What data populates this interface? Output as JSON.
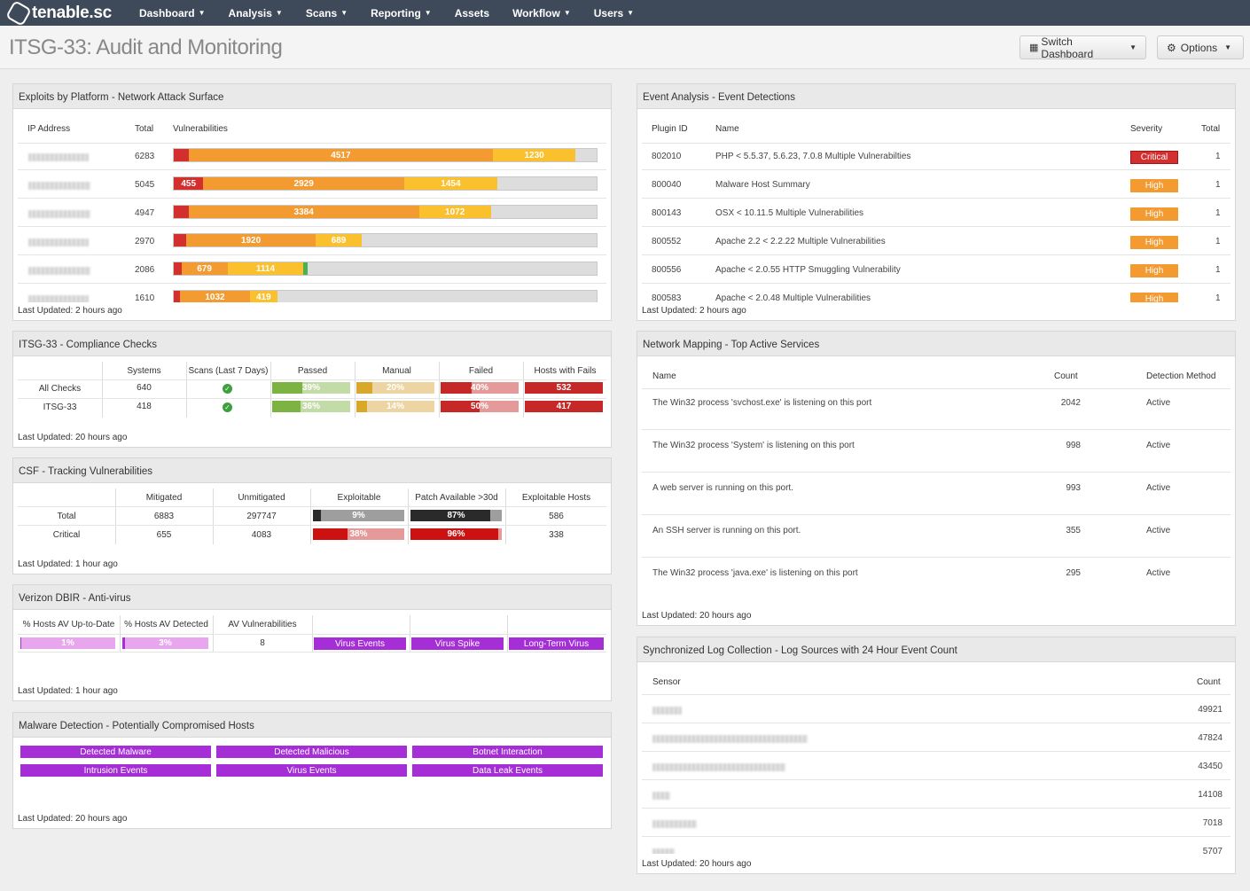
{
  "nav": {
    "logo": "tenable.sc",
    "items": [
      {
        "label": "Dashboard",
        "dropdown": true
      },
      {
        "label": "Analysis",
        "dropdown": true
      },
      {
        "label": "Scans",
        "dropdown": true
      },
      {
        "label": "Reporting",
        "dropdown": true
      },
      {
        "label": "Assets",
        "dropdown": false
      },
      {
        "label": "Workflow",
        "dropdown": true
      },
      {
        "label": "Users",
        "dropdown": true
      }
    ]
  },
  "header": {
    "title": "ITSG-33: Audit and Monitoring",
    "switch_dashboard": "Switch Dashboard",
    "options": "Options"
  },
  "colors": {
    "critical": "#d32f2f",
    "high": "#f39a30",
    "medium": "#fbc02d",
    "low": "#4caf50",
    "pass": "#7cb342",
    "manual": "#d9a82a",
    "fail": "#c62828",
    "purple": "#a52ed6",
    "nav_bg": "#3e4a5a"
  },
  "exploits": {
    "title": "Exploits by Platform - Network Attack Surface",
    "headers": {
      "ip": "IP Address",
      "total": "Total",
      "vulns": "Vulnerabilities"
    },
    "rows": [
      {
        "total": "6283",
        "segments": [
          {
            "c": "critical",
            "v": "",
            "w": 3.5
          },
          {
            "c": "high",
            "v": "4517",
            "w": 72
          },
          {
            "c": "medium",
            "v": "1230",
            "w": 19.5
          }
        ]
      },
      {
        "total": "5045",
        "segments": [
          {
            "c": "critical",
            "v": "455",
            "w": 7
          },
          {
            "c": "high",
            "v": "2929",
            "w": 47.5
          },
          {
            "c": "medium",
            "v": "1454",
            "w": 22
          }
        ]
      },
      {
        "total": "4947",
        "segments": [
          {
            "c": "critical",
            "v": "",
            "w": 3.5
          },
          {
            "c": "high",
            "v": "3384",
            "w": 54.5
          },
          {
            "c": "medium",
            "v": "1072",
            "w": 17
          }
        ]
      },
      {
        "total": "2970",
        "segments": [
          {
            "c": "critical",
            "v": "",
            "w": 3
          },
          {
            "c": "high",
            "v": "1920",
            "w": 30.5
          },
          {
            "c": "medium",
            "v": "689",
            "w": 11
          }
        ]
      },
      {
        "total": "2086",
        "segments": [
          {
            "c": "critical",
            "v": "",
            "w": 1.8
          },
          {
            "c": "high",
            "v": "679",
            "w": 10.9
          },
          {
            "c": "medium",
            "v": "1114",
            "w": 18
          },
          {
            "c": "low",
            "v": "",
            "w": 0.9
          }
        ]
      },
      {
        "total": "1610",
        "segments": [
          {
            "c": "critical",
            "v": "",
            "w": 1.5
          },
          {
            "c": "high",
            "v": "1032",
            "w": 16.5
          },
          {
            "c": "medium",
            "v": "419",
            "w": 6.5
          }
        ]
      }
    ],
    "updated": "Last Updated: 2 hours ago"
  },
  "events": {
    "title": "Event Analysis - Event Detections",
    "headers": {
      "plugin": "Plugin ID",
      "name": "Name",
      "severity": "Severity",
      "total": "Total"
    },
    "rows": [
      {
        "plugin": "802010",
        "name": "PHP < 5.5.37, 5.6.23, 7.0.8 Multiple Vulnerabilties",
        "severity": "Critical",
        "total": "1"
      },
      {
        "plugin": "800040",
        "name": "Malware Host Summary",
        "severity": "High",
        "total": "1"
      },
      {
        "plugin": "800143",
        "name": "OSX < 10.11.5 Multiple Vulnerabilities",
        "severity": "High",
        "total": "1"
      },
      {
        "plugin": "800552",
        "name": "Apache 2.2 < 2.2.22 Multiple Vulnerabilities",
        "severity": "High",
        "total": "1"
      },
      {
        "plugin": "800556",
        "name": "Apache < 2.0.55 HTTP Smuggling Vulnerability",
        "severity": "High",
        "total": "1"
      },
      {
        "plugin": "800583",
        "name": "Apache < 2.0.48 Multiple Vulnerabilities",
        "severity": "High",
        "total": "1"
      }
    ],
    "updated": "Last Updated: 2 hours ago"
  },
  "compliance": {
    "title": "ITSG-33 - Compliance Checks",
    "headers": [
      "Systems",
      "Scans (Last 7 Days)",
      "Passed",
      "Manual",
      "Failed",
      "Hosts with Fails"
    ],
    "rows": [
      {
        "label": "All Checks",
        "systems": "640",
        "passed": "39%",
        "passed_v": 39,
        "manual": "20%",
        "manual_v": 20,
        "failed": "40%",
        "failed_v": 40,
        "fails": "532"
      },
      {
        "label": "ITSG-33",
        "systems": "418",
        "passed": "36%",
        "passed_v": 36,
        "manual": "14%",
        "manual_v": 14,
        "failed": "50%",
        "failed_v": 50,
        "fails": "417"
      }
    ],
    "updated": "Last Updated: 20 hours ago"
  },
  "csf": {
    "title": "CSF - Tracking Vulnerabilities",
    "headers": [
      "Mitigated",
      "Unmitigated",
      "Exploitable",
      "Patch Available >30d",
      "Exploitable Hosts"
    ],
    "rows": [
      {
        "label": "Total",
        "mitigated": "6883",
        "unmitigated": "297747",
        "exploitable": "9%",
        "exploitable_v": 9,
        "patch": "87%",
        "patch_v": 87,
        "hosts": "586"
      },
      {
        "label": "Critical",
        "mitigated": "655",
        "unmitigated": "4083",
        "exploitable": "38%",
        "exploitable_v": 38,
        "patch": "96%",
        "patch_v": 96,
        "hosts": "338"
      }
    ],
    "updated": "Last Updated: 1 hour ago"
  },
  "verizon": {
    "title": "Verizon DBIR - Anti-virus",
    "headers": [
      "% Hosts AV Up-to-Date",
      "% Hosts AV Detected",
      "AV Vulnerabilities"
    ],
    "uptodate": "1%",
    "uptodate_v": 1,
    "detected": "3%",
    "detected_v": 3,
    "av_vulns": "8",
    "buttons": [
      "Virus Events",
      "Virus Spike",
      "Long-Term Virus"
    ],
    "updated": "Last Updated: 1 hour ago"
  },
  "malware": {
    "title": "Malware Detection - Potentially Compromised Hosts",
    "buttons": [
      "Detected Malware",
      "Detected Malicious",
      "Botnet Interaction",
      "Intrusion Events",
      "Virus Events",
      "Data Leak Events"
    ],
    "updated": "Last Updated: 20 hours ago"
  },
  "network": {
    "title": "Network Mapping - Top Active Services",
    "headers": {
      "name": "Name",
      "count": "Count",
      "method": "Detection Method"
    },
    "rows": [
      {
        "name": "The Win32 process 'svchost.exe' is listening on this port",
        "count": "2042",
        "method": "Active"
      },
      {
        "name": "The Win32 process 'System' is listening on this port",
        "count": "998",
        "method": "Active"
      },
      {
        "name": "A web server is running on this port.",
        "count": "993",
        "method": "Active"
      },
      {
        "name": "An SSH server is running on this port.",
        "count": "355",
        "method": "Active"
      },
      {
        "name": "The Win32 process 'java.exe' is listening on this port",
        "count": "295",
        "method": "Active"
      }
    ],
    "updated": "Last Updated: 20 hours ago"
  },
  "logs": {
    "title": "Synchronized Log Collection - Log Sources with 24 Hour Event Count",
    "headers": {
      "sensor": "Sensor",
      "count": "Count"
    },
    "rows": [
      {
        "count": "49921"
      },
      {
        "count": "47824"
      },
      {
        "count": "43450"
      },
      {
        "count": "14108"
      },
      {
        "count": "7018"
      },
      {
        "count": "5707"
      }
    ],
    "updated": "Last Updated: 20 hours ago"
  }
}
